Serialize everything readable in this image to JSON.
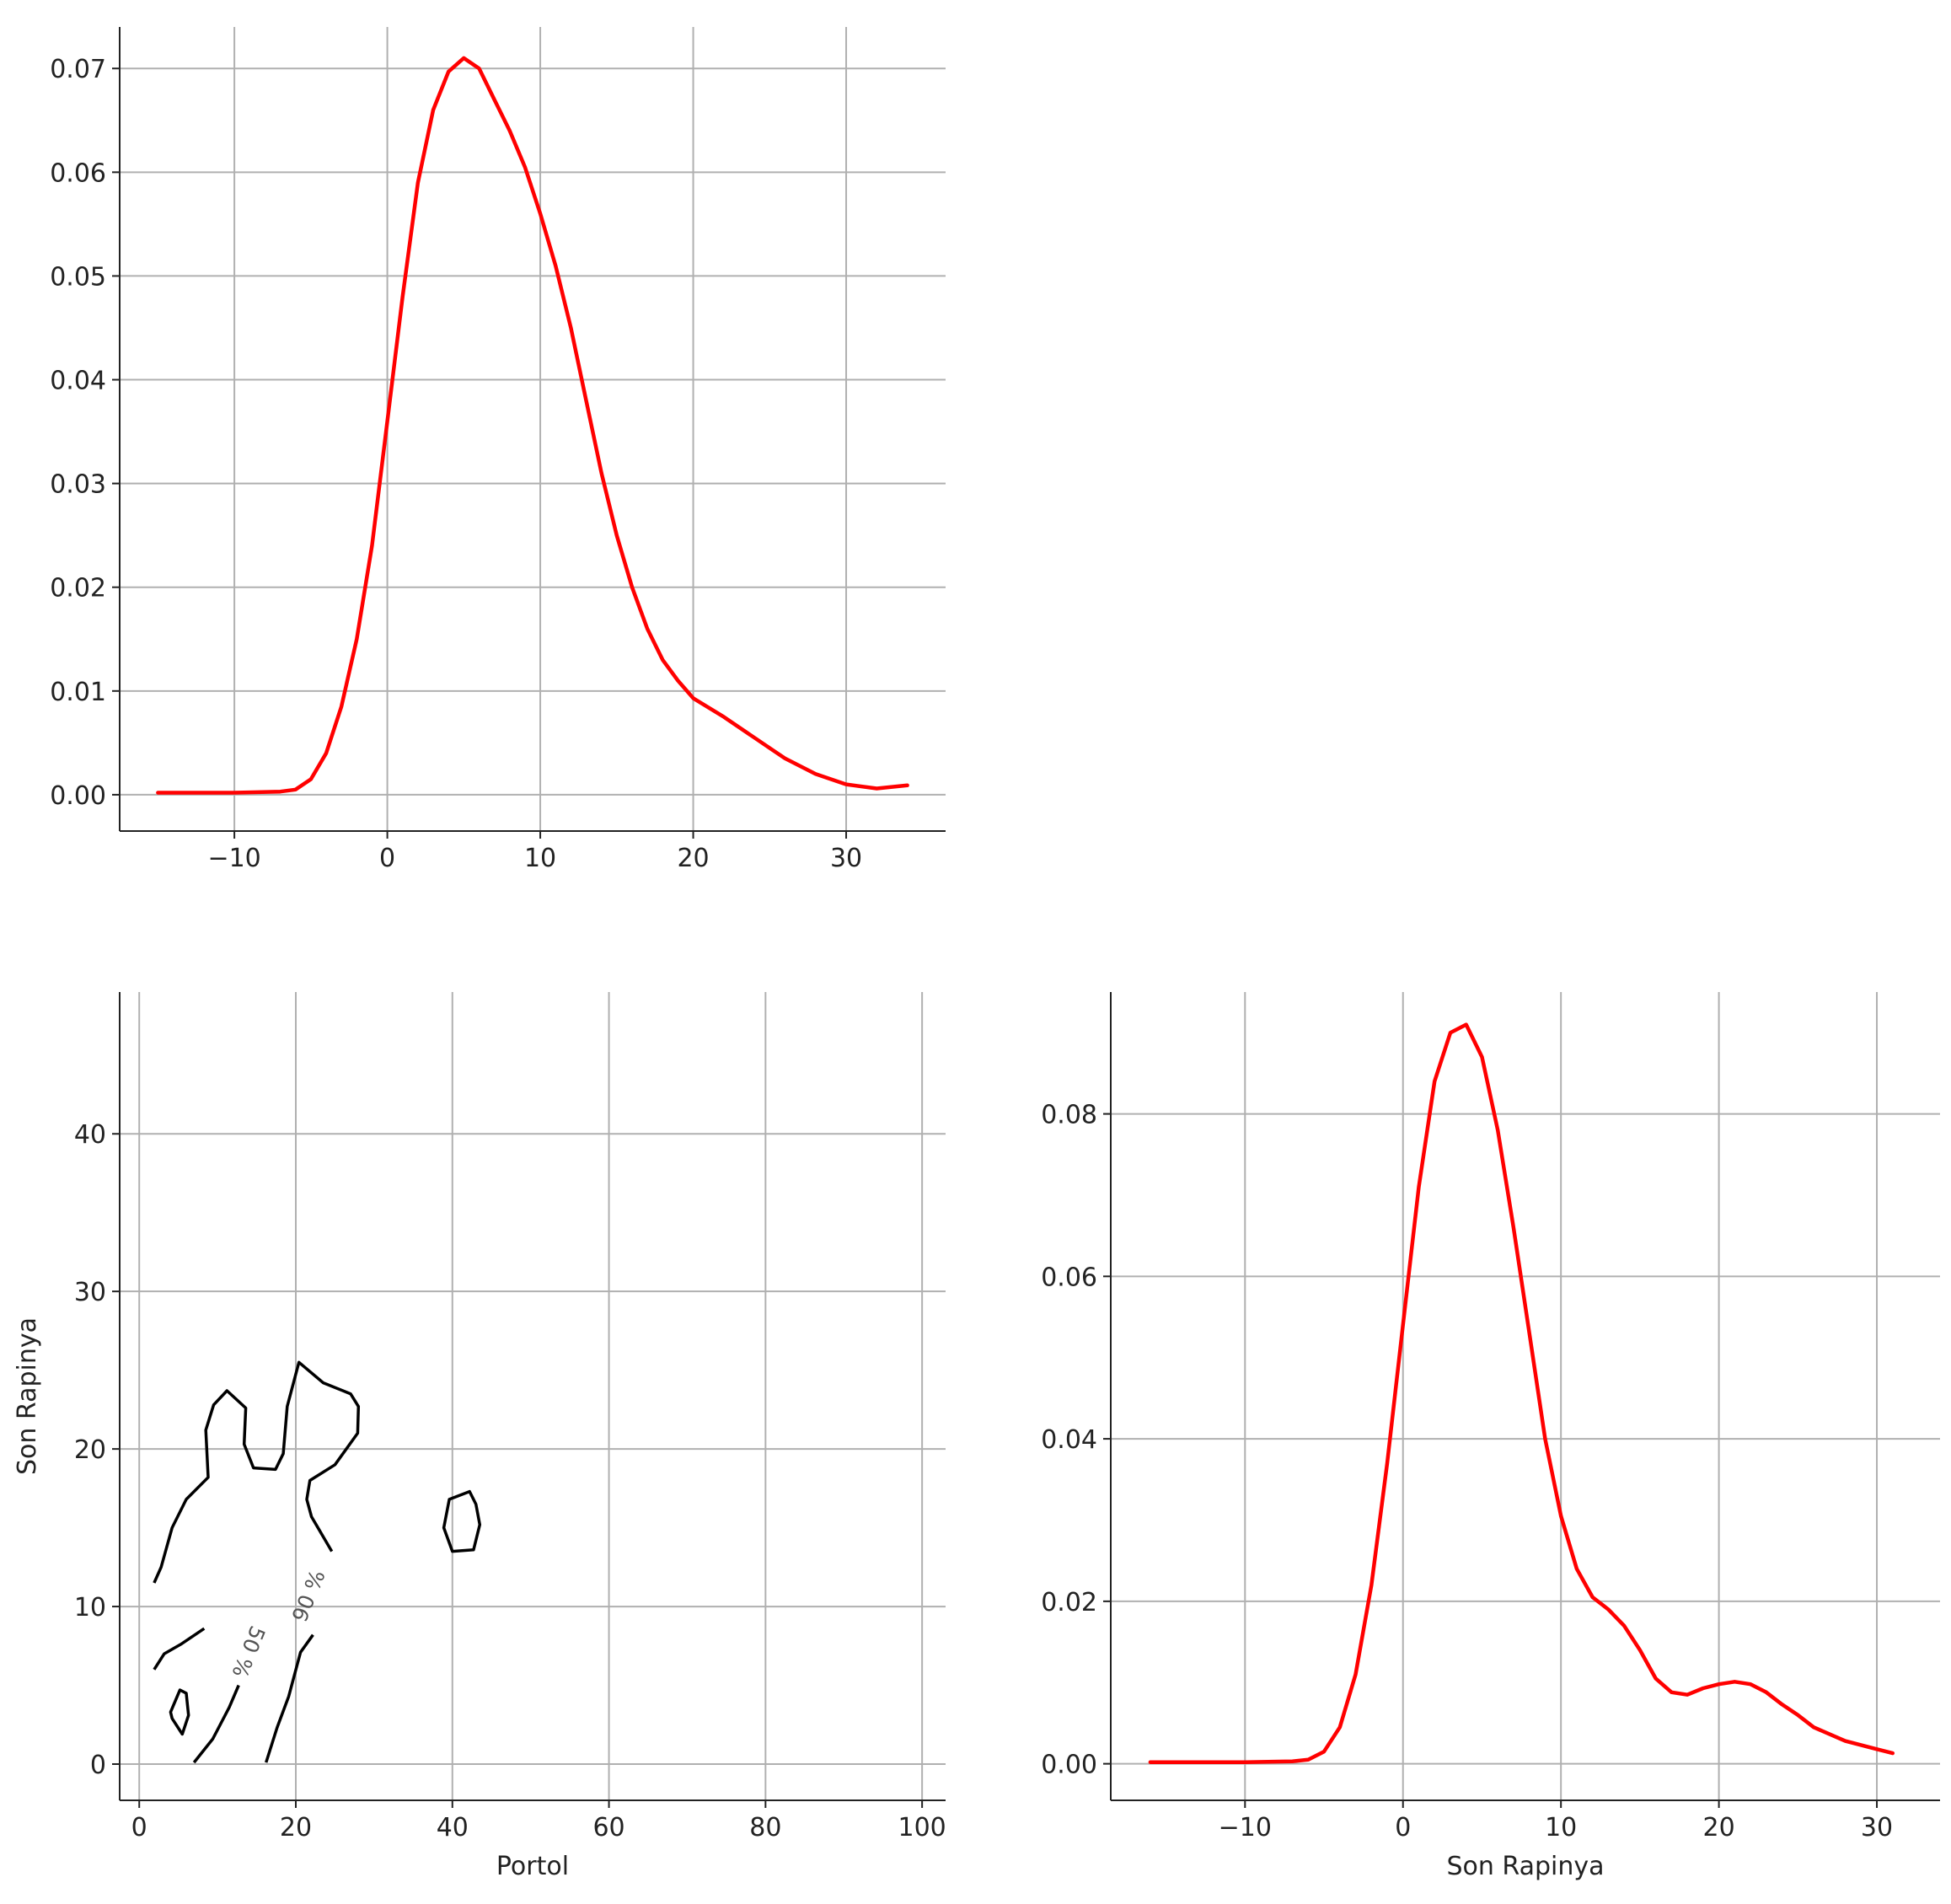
{
  "chart_data": [
    {
      "type": "line",
      "panel": "top-left",
      "title": "",
      "xlabel": "",
      "ylabel": "",
      "xlim": [
        -17.5,
        36.5
      ],
      "ylim": [
        -0.0035,
        0.074
      ],
      "x_ticks": [
        -10,
        0,
        10,
        20,
        30
      ],
      "x_tick_labels": [
        "−10",
        "0",
        "10",
        "20",
        "30"
      ],
      "y_ticks": [
        0,
        0.01,
        0.02,
        0.03,
        0.04,
        0.05,
        0.06,
        0.07
      ],
      "y_tick_labels": [
        "0.00",
        "0.01",
        "0.02",
        "0.03",
        "0.04",
        "0.05",
        "0.06",
        "0.07"
      ],
      "grid": true,
      "line_color": "#ff0000",
      "x": [
        -15,
        -10,
        -7,
        -6,
        -5,
        -4,
        -3,
        -2,
        -1,
        0,
        1,
        2,
        3,
        4,
        5,
        6,
        7,
        8,
        9,
        10,
        11,
        12,
        13,
        14,
        15,
        16,
        17,
        18,
        19,
        20,
        22,
        24,
        26,
        28,
        30,
        32,
        34
      ],
      "y": [
        0.0002,
        0.0002,
        0.0003,
        0.0005,
        0.0015,
        0.004,
        0.0085,
        0.015,
        0.024,
        0.036,
        0.048,
        0.059,
        0.066,
        0.0697,
        0.071,
        0.07,
        0.067,
        0.064,
        0.0605,
        0.056,
        0.051,
        0.045,
        0.038,
        0.031,
        0.025,
        0.02,
        0.016,
        0.013,
        0.011,
        0.0093,
        0.0075,
        0.0055,
        0.0035,
        0.002,
        0.001,
        0.0006,
        0.0009
      ]
    },
    {
      "type": "contour",
      "panel": "bottom-left",
      "title": "",
      "xlabel": "Portol",
      "ylabel": "Son Rapinya",
      "xlim": [
        -2.5,
        103
      ],
      "ylim": [
        -2.3,
        49
      ],
      "x_ticks": [
        0,
        20,
        40,
        60,
        80,
        100
      ],
      "x_tick_labels": [
        "0",
        "20",
        "40",
        "60",
        "80",
        "100"
      ],
      "y_ticks": [
        0,
        10,
        20,
        30,
        40
      ],
      "y_tick_labels": [
        "0",
        "10",
        "20",
        "30",
        "40"
      ],
      "grid": true,
      "line_color": "#000000",
      "contours": [
        {
          "level": "90 %",
          "closed": false,
          "points": [
            [
              1.9,
              11.5
            ],
            [
              2.8,
              12.5
            ],
            [
              4.2,
              15.0
            ],
            [
              6.0,
              16.8
            ],
            [
              8.8,
              18.2
            ],
            [
              8.5,
              21.2
            ],
            [
              9.5,
              22.8
            ],
            [
              11.2,
              23.7
            ],
            [
              13.6,
              22.6
            ],
            [
              13.4,
              20.3
            ],
            [
              14.6,
              18.8
            ],
            [
              17.4,
              18.7
            ],
            [
              18.4,
              19.7
            ],
            [
              18.9,
              22.7
            ],
            [
              20.4,
              25.5
            ],
            [
              23.5,
              24.2
            ],
            [
              27.0,
              23.5
            ],
            [
              28.0,
              22.7
            ],
            [
              27.9,
              21.0
            ],
            [
              25.0,
              19.0
            ],
            [
              21.8,
              18.0
            ],
            [
              21.4,
              16.8
            ],
            [
              22.0,
              15.7
            ],
            [
              24.6,
              13.5
            ]
          ]
        },
        {
          "level": "90 %",
          "closed": false,
          "points": [
            [
              16.2,
              0.1
            ],
            [
              17.6,
              2.3
            ],
            [
              19.1,
              4.3
            ],
            [
              20.6,
              7.1
            ],
            [
              22.2,
              8.2
            ]
          ]
        },
        {
          "level": "",
          "closed": true,
          "points": [
            [
              38.9,
              15.0
            ],
            [
              39.6,
              16.8
            ],
            [
              42.2,
              17.3
            ],
            [
              43.0,
              16.5
            ],
            [
              43.5,
              15.2
            ],
            [
              42.7,
              13.6
            ],
            [
              40.0,
              13.5
            ]
          ]
        },
        {
          "level": "50 %",
          "closed": false,
          "points": [
            [
              1.9,
              6.0
            ],
            [
              3.2,
              7.0
            ],
            [
              5.3,
              7.6
            ],
            [
              8.3,
              8.6
            ]
          ]
        },
        {
          "level": "50 %",
          "closed": false,
          "points": [
            [
              7.0,
              0.1
            ],
            [
              9.4,
              1.6
            ],
            [
              11.5,
              3.6
            ],
            [
              12.7,
              5.0
            ]
          ]
        },
        {
          "level": "",
          "closed": true,
          "points": [
            [
              4.0,
              3.3
            ],
            [
              5.2,
              4.7
            ],
            [
              6.0,
              4.5
            ],
            [
              6.3,
              3.1
            ],
            [
              5.5,
              1.9
            ],
            [
              4.2,
              2.9
            ]
          ]
        }
      ],
      "contour_labels": [
        "90 %",
        "50 %"
      ]
    },
    {
      "type": "line",
      "panel": "bottom-right",
      "title": "",
      "xlabel": "Son Rapinya",
      "ylabel": "",
      "xlim": [
        -18.5,
        34
      ],
      "ylim": [
        -0.0045,
        0.095
      ],
      "x_ticks": [
        -10,
        0,
        10,
        20,
        30
      ],
      "x_tick_labels": [
        "−10",
        "0",
        "10",
        "20",
        "30"
      ],
      "y_ticks": [
        0,
        0.02,
        0.04,
        0.06,
        0.08
      ],
      "y_tick_labels": [
        "0.00",
        "0.02",
        "0.04",
        "0.06",
        "0.08"
      ],
      "grid": true,
      "line_color": "#ff0000",
      "x": [
        -16,
        -10,
        -7,
        -6,
        -5,
        -4,
        -3,
        -2,
        -1,
        0,
        1,
        2,
        3,
        4,
        5,
        6,
        7,
        8,
        9,
        10,
        11,
        12,
        13,
        14,
        15,
        16,
        17,
        18,
        19,
        20,
        21,
        22,
        23,
        24,
        25,
        26,
        28,
        30,
        31
      ],
      "y": [
        0.0002,
        0.0002,
        0.0003,
        0.0005,
        0.0015,
        0.0045,
        0.011,
        0.022,
        0.037,
        0.054,
        0.071,
        0.084,
        0.09,
        0.091,
        0.087,
        0.078,
        0.066,
        0.053,
        0.04,
        0.0305,
        0.024,
        0.0205,
        0.019,
        0.017,
        0.014,
        0.0105,
        0.0088,
        0.0085,
        0.0093,
        0.0098,
        0.0101,
        0.0098,
        0.0088,
        0.0073,
        0.006,
        0.0045,
        0.0028,
        0.0018,
        0.0013
      ]
    }
  ]
}
